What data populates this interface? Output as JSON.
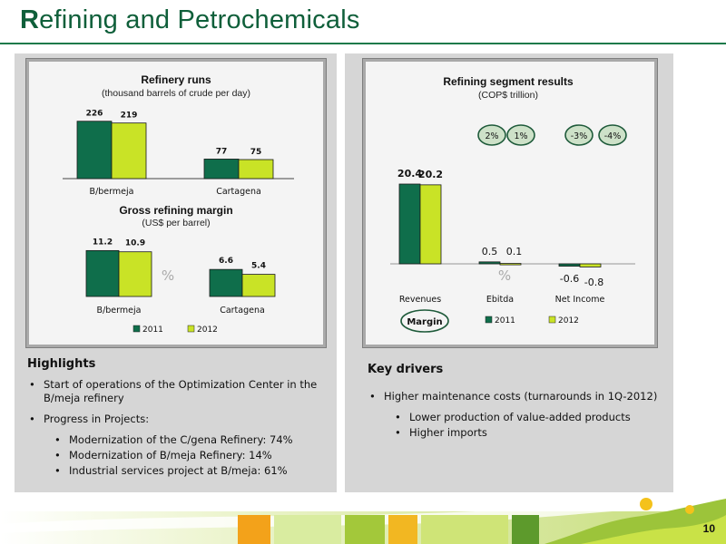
{
  "slide": {
    "title_first": "R",
    "title_rest": "efining and Petrochemicals",
    "page_number": "10"
  },
  "colors": {
    "series_2011": "#0f6e4b",
    "series_2012": "#c9e326",
    "accent": "#1e7a4a"
  },
  "chart_data": [
    {
      "type": "bar",
      "title": "Refinery runs",
      "subtitle": "(thousand barrels of crude per day)",
      "categories": [
        "B/bermeja",
        "Cartagena"
      ],
      "series": [
        {
          "name": "2011",
          "values": [
            226,
            77
          ]
        },
        {
          "name": "2012",
          "values": [
            219,
            75
          ]
        }
      ],
      "ylim": [
        0,
        250
      ],
      "grid": false
    },
    {
      "type": "bar",
      "title": "Gross refining margin",
      "subtitle": "(US$ per barrel)",
      "categories": [
        "B/bermeja",
        "Cartagena"
      ],
      "series": [
        {
          "name": "2011",
          "values": [
            11.2,
            6.6
          ]
        },
        {
          "name": "2012",
          "values": [
            10.9,
            5.4
          ]
        }
      ],
      "ylim": [
        0,
        14
      ],
      "annotation": "%",
      "legend": "bottom",
      "grid": false
    },
    {
      "type": "bar",
      "title": "Refining segment results",
      "subtitle": "(COP$ trillion)",
      "categories": [
        "Revenues",
        "Ebitda",
        "Net Income"
      ],
      "series": [
        {
          "name": "2011",
          "values": [
            20.4,
            0.5,
            -0.6
          ]
        },
        {
          "name": "2012",
          "values": [
            20.2,
            0.1,
            -0.8
          ]
        }
      ],
      "ylim": [
        -1,
        22
      ],
      "margin_badges": [
        "2%",
        "1%",
        "-3%",
        "-4%"
      ],
      "margin_label": "Margin",
      "annotation": "%",
      "legend": "bottom",
      "grid": false
    }
  ],
  "highlights": {
    "heading": "Highlights",
    "items": [
      {
        "text": "Start of operations of the Optimization Center in the B/meja refinery",
        "level": 1
      },
      {
        "text": "Progress in Projects:",
        "level": 1
      },
      {
        "text": "Modernization of the C/gena Refinery: 74%",
        "level": 2
      },
      {
        "text": "Modernization of B/meja Refinery: 14%",
        "level": 2
      },
      {
        "text": "Industrial services project at B/meja: 61%",
        "level": 2
      }
    ]
  },
  "drivers": {
    "heading": "Key drivers",
    "items": [
      {
        "text": "Higher maintenance costs (turnarounds in 1Q-2012)",
        "level": 1
      },
      {
        "text": "Lower production of value-added products",
        "level": 2
      },
      {
        "text": "Higher imports",
        "level": 2
      }
    ]
  }
}
